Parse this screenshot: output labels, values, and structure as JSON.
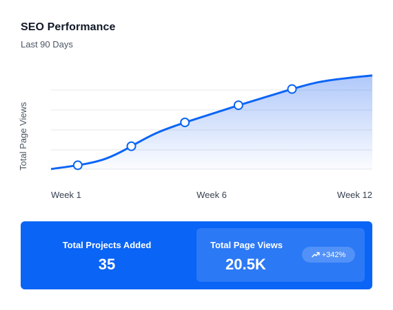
{
  "header": {
    "title": "SEO Performance",
    "subtitle": "Last 90 Days"
  },
  "chart_data": {
    "type": "area",
    "title": "SEO Performance",
    "subtitle": "Last 90 Days",
    "xlabel": "",
    "ylabel": "Total Page Views",
    "x_tick_labels": [
      "Week 1",
      "Week 6",
      "Week 12"
    ],
    "x": [
      0,
      2,
      4,
      6,
      8,
      10,
      12
    ],
    "values": [
      0.0,
      0.6,
      2.2,
      3.3,
      4.3,
      5.2,
      5.6
    ],
    "markers": [
      1,
      3,
      5,
      7,
      9
    ],
    "ylim": [
      0,
      6
    ],
    "grid": true,
    "line_color": "#0a64f5",
    "fill_color": "#2f6ff0"
  },
  "stats": {
    "projects_label": "Total Projects Added",
    "projects_value": "35",
    "views_label": "Total Page Views",
    "views_value": "20.5K",
    "views_change": "+342%"
  },
  "colors": {
    "accent": "#0a64f5"
  }
}
